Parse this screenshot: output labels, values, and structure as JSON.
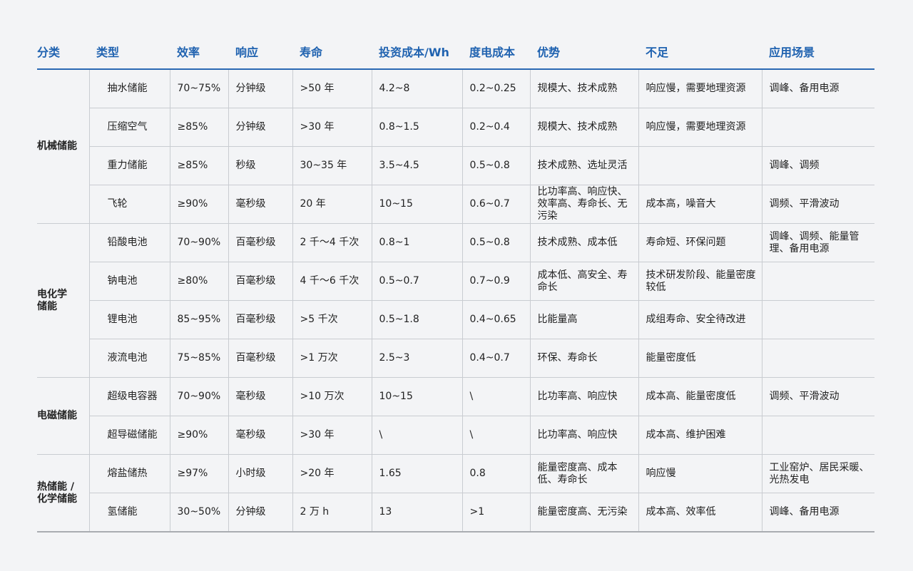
{
  "table": {
    "header": [
      "分类",
      "类型",
      "效率",
      "响应",
      "寿命",
      "投资成本/Wh",
      "度电成本",
      "优势",
      "不足",
      "应用场景"
    ],
    "groups": [
      {
        "label": "机械储能",
        "rows": [
          [
            "抽水储能",
            "70~75%",
            "分钟级",
            ">50 年",
            "4.2~8",
            "0.2~0.25",
            "规模大、技术成熟",
            "响应慢，需要地理资源",
            "调峰、备用电源"
          ],
          [
            "压缩空气",
            "≥85%",
            "分钟级",
            ">30 年",
            "0.8~1.5",
            "0.2~0.4",
            "规模大、技术成熟",
            "响应慢，需要地理资源",
            null
          ],
          [
            "重力储能",
            "≥85%",
            "秒级",
            "30~35 年",
            "3.5~4.5",
            "0.5~0.8",
            "技术成熟、选址灵活",
            null,
            "调峰、调频"
          ],
          [
            "飞轮",
            "≥90%",
            "毫秒级",
            "20 年",
            "10~15",
            "0.6~0.7",
            "比功率高、响应快、效率高、寿命长、无污染",
            "成本高，噪音大",
            "调频、平滑波动"
          ]
        ]
      },
      {
        "label": "电化学\n储能",
        "rows": [
          [
            "铅酸电池",
            "70~90%",
            "百毫秒级",
            "2 千～4 千次",
            "0.8~1",
            "0.5~0.8",
            "技术成熟、成本低",
            "寿命短、环保问题",
            "调峰、调频、能量管理、备用电源"
          ],
          [
            "钠电池",
            "≥80%",
            "百毫秒级",
            "4 千～6 千次",
            "0.5~0.7",
            "0.7~0.9",
            "成本低、高安全、寿命长",
            "技术研发阶段、能量密度较低",
            null
          ],
          [
            "锂电池",
            "85~95%",
            "百毫秒级",
            ">5 千次",
            "0.5~1.8",
            "0.4~0.65",
            "比能量高",
            "成组寿命、安全待改进",
            null
          ],
          [
            "液流电池",
            "75~85%",
            "百毫秒级",
            ">1 万次",
            "2.5~3",
            "0.4~0.7",
            "环保、寿命长",
            "能量密度低",
            null
          ]
        ]
      },
      {
        "label": "电磁储能",
        "rows": [
          [
            "超级电容器",
            "70~90%",
            "毫秒级",
            ">10 万次",
            "10~15",
            "\\",
            "比功率高、响应快",
            "成本高、能量密度低",
            "调频、平滑波动"
          ],
          [
            "超导磁储能",
            "≥90%",
            "毫秒级",
            ">30 年",
            "\\",
            "\\",
            "比功率高、响应快",
            "成本高、维护困难",
            null
          ]
        ]
      },
      {
        "label": "热储能 /\n化学储能",
        "rows": [
          [
            "熔盐储热",
            "≥97%",
            "小时级",
            ">20 年",
            "1.65",
            "0.8",
            "能量密度高、成本低、寿命长",
            "响应慢",
            "工业窑炉、居民采暖、光热发电"
          ],
          [
            "氢储能",
            "30~50%",
            "分钟级",
            "2 万 h",
            "13",
            ">1",
            "能量密度高、无污染",
            "成本高、效率低",
            "调峰、备用电源"
          ]
        ]
      }
    ]
  }
}
